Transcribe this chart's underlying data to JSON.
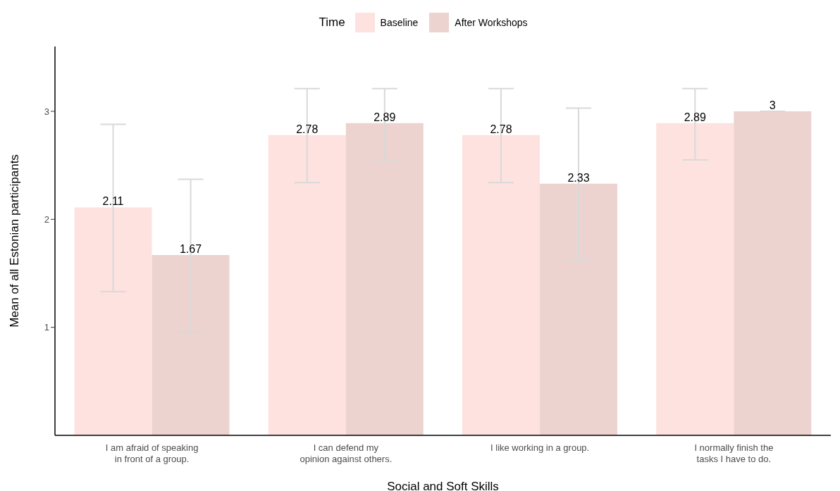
{
  "chart_data": {
    "type": "bar",
    "xlabel": "Social and Soft Skills",
    "ylabel": "Mean of all Estonian participants",
    "legend_title": "Time",
    "categories": [
      "I am afraid of speaking\nin front of a group.",
      "I can defend my\nopinion against others.",
      "I like working in a group.",
      "I normally finish the\ntasks I have to do."
    ],
    "series": [
      {
        "name": "Baseline",
        "color": "#fde2df",
        "values": [
          2.11,
          2.78,
          2.78,
          2.89
        ],
        "errors": [
          [
            1.33,
            2.88
          ],
          [
            2.34,
            3.21
          ],
          [
            2.34,
            3.21
          ],
          [
            2.55,
            3.21
          ]
        ]
      },
      {
        "name": "After Workshops",
        "color": "#ecd3cf",
        "values": [
          1.67,
          2.89,
          2.33,
          3
        ],
        "errors": [
          [
            0.96,
            2.37
          ],
          [
            2.55,
            3.21
          ],
          [
            1.62,
            3.03
          ],
          [
            3,
            3
          ]
        ]
      }
    ],
    "ylim": [
      0,
      3.6
    ],
    "yticks": [
      1,
      2,
      3
    ],
    "grid": false,
    "legend": "top",
    "data_labels": true
  }
}
